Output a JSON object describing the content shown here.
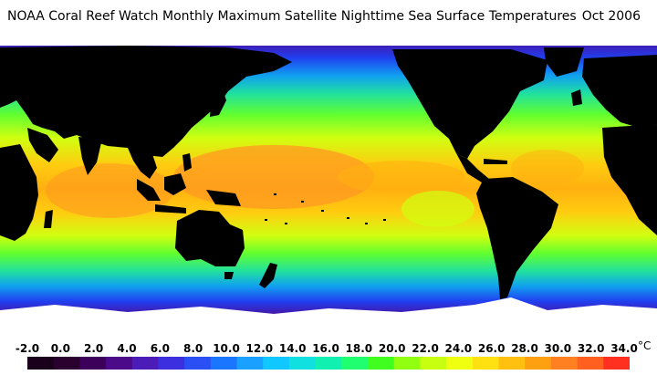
{
  "title": "NOAA Coral Reef Watch Monthly Maximum Satellite Nighttime Sea Surface Temperatures",
  "date": "Oct 2006",
  "legend": {
    "unit": "°C",
    "tick_labels": [
      "-2.0",
      "0.0",
      "2.0",
      "4.0",
      "6.0",
      "8.0",
      "10.0",
      "12.0",
      "14.0",
      "16.0",
      "18.0",
      "20.0",
      "22.0",
      "24.0",
      "26.0",
      "28.0",
      "30.0",
      "32.0",
      "34.0"
    ],
    "colors": [
      "#1a001a",
      "#2a002e",
      "#3c005a",
      "#4a0a8a",
      "#4b1cb8",
      "#3c2fe0",
      "#2a50f5",
      "#1a75ff",
      "#1aa0ff",
      "#10c8ff",
      "#10e0e0",
      "#10f0b0",
      "#20ff70",
      "#40ff20",
      "#90ff10",
      "#c8ff10",
      "#f0ff10",
      "#ffe010",
      "#ffc010",
      "#ffa010",
      "#ff8020",
      "#ff6020",
      "#ff3020"
    ]
  },
  "map_colors": {
    "land": "#000000",
    "ice": "#ffffff",
    "polar": "#4a10a0",
    "cold": "#2040f0",
    "cool": "#10a0f0",
    "mild": "#20e0a0",
    "warmish": "#60ff30",
    "warm": "#d0ff10",
    "hot": "#ffcc10",
    "hottest": "#ff9a20",
    "red": "#ff4020"
  }
}
